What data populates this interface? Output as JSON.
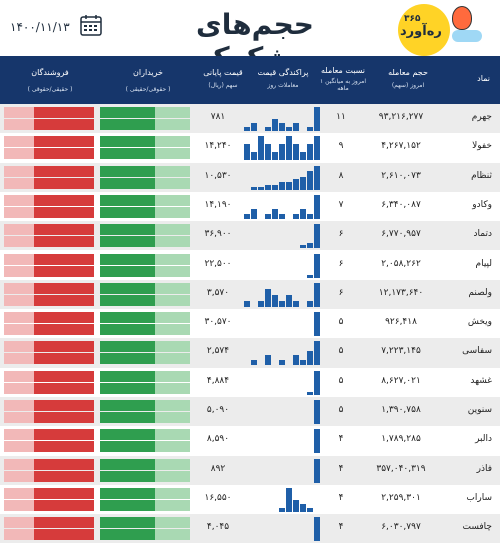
{
  "header": {
    "title": "حجم‌های مشکوک",
    "date": "۱۴۰۰/۱۱/۱۳",
    "logo_number": "۳۶۵",
    "logo_brand": "ره‌آورد",
    "colors": {
      "header_bg": "#16366b",
      "buy": "#2f9e4f",
      "sell": "#d63b3b",
      "spark": "#1f5fa8"
    }
  },
  "columns": {
    "symbol": "نماد",
    "volume": "حجم معامله",
    "volume_sub": "امروز (سهم)",
    "ratio": "نسبت معامله",
    "ratio_sub": "امروز به میانگین ۱ ماهه",
    "spread": "پراکندگی قیمت",
    "spread_sub": "معاملات روز",
    "price": "قیمت پایانی",
    "price_sub": "سهم (ریال)",
    "buyers": "خریداران",
    "buyers_sub": "( حقوقی/حقیقی )",
    "sellers": "فروشندگان",
    "sellers_sub": "( حقیقی/حقوقی )"
  },
  "rows": [
    {
      "symbol": "جهرم",
      "volume": "۹۳,۲۱۶,۲۷۷",
      "ratio": "۱۱",
      "price": "۷۸۱",
      "spark": [
        1,
        2,
        0,
        1,
        3,
        2,
        1,
        2,
        0,
        1,
        6
      ]
    },
    {
      "symbol": "خفولا",
      "volume": "۴,۲۶۷,۱۵۲",
      "ratio": "۹",
      "price": "۱۴,۲۴۰",
      "spark": [
        2,
        1,
        3,
        2,
        1,
        2,
        3,
        2,
        1,
        2,
        3
      ]
    },
    {
      "symbol": "ثنظام",
      "volume": "۲,۶۱۰,۰۷۳",
      "ratio": "۸",
      "price": "۱۰,۵۳۰",
      "spark": [
        0,
        1,
        1,
        2,
        2,
        3,
        3,
        4,
        5,
        7,
        9
      ]
    },
    {
      "symbol": "وکادو",
      "volume": "۶,۳۴۰,۰۸۷",
      "ratio": "۷",
      "price": "۱۴,۱۹۰",
      "spark": [
        1,
        2,
        0,
        1,
        2,
        1,
        0,
        1,
        2,
        1,
        5
      ]
    },
    {
      "symbol": "دتماد",
      "volume": "۶,۷۷۰,۹۵۷",
      "ratio": "۶",
      "price": "۳۶,۹۰۰",
      "spark": [
        0,
        0,
        0,
        0,
        0,
        0,
        0,
        0,
        1,
        2,
        9
      ]
    },
    {
      "symbol": "لپیام",
      "volume": "۲,۰۵۸,۲۶۲",
      "ratio": "۶",
      "price": "۲۲,۵۰۰",
      "spark": [
        0,
        0,
        0,
        0,
        0,
        0,
        0,
        0,
        0,
        1,
        7
      ]
    },
    {
      "symbol": "ولصنم",
      "volume": "۱۲,۱۷۳,۶۴۰",
      "ratio": "۶",
      "price": "۳,۵۷۰",
      "spark": [
        1,
        0,
        1,
        3,
        2,
        1,
        2,
        1,
        0,
        1,
        4
      ]
    },
    {
      "symbol": "ویخش",
      "volume": "۹۲۶,۴۱۸",
      "ratio": "۵",
      "price": "۳۰,۵۷۰",
      "spark": [
        0,
        0,
        0,
        0,
        0,
        0,
        0,
        0,
        0,
        0,
        8
      ]
    },
    {
      "symbol": "سفاسی",
      "volume": "۷,۲۲۳,۱۴۵",
      "ratio": "۵",
      "price": "۲,۵۷۴",
      "spark": [
        0,
        1,
        0,
        2,
        0,
        1,
        0,
        2,
        1,
        3,
        5
      ]
    },
    {
      "symbol": "غشهد",
      "volume": "۸,۶۲۷,۰۲۱",
      "ratio": "۵",
      "price": "۴,۸۸۴",
      "spark": [
        0,
        0,
        0,
        0,
        0,
        0,
        0,
        0,
        0,
        1,
        9
      ]
    },
    {
      "symbol": "سنوین",
      "volume": "۱,۳۹۰,۷۵۸",
      "ratio": "۵",
      "price": "۵,۰۹۰",
      "spark": [
        0,
        0,
        0,
        0,
        0,
        0,
        0,
        0,
        0,
        0,
        6
      ]
    },
    {
      "symbol": "دالبر",
      "volume": "۱,۷۸۹,۲۸۵",
      "ratio": "۴",
      "price": "۸,۵۹۰",
      "spark": [
        0,
        0,
        0,
        0,
        0,
        0,
        0,
        0,
        0,
        0,
        8
      ]
    },
    {
      "symbol": "فاذر",
      "volume": "۳۵۷,۰۴۰,۳۱۹",
      "ratio": "۴",
      "price": "۸۹۲",
      "spark": [
        0,
        0,
        0,
        0,
        0,
        0,
        0,
        0,
        0,
        0,
        7
      ]
    },
    {
      "symbol": "ساراب",
      "volume": "۲,۲۵۹,۳۰۱",
      "ratio": "۴",
      "price": "۱۶,۵۵۰",
      "spark": [
        0,
        0,
        0,
        0,
        0,
        1,
        6,
        3,
        2,
        1,
        0
      ]
    },
    {
      "symbol": "چافست",
      "volume": "۶,۰۳۰,۷۹۷",
      "ratio": "۴",
      "price": "۴,۰۴۵",
      "spark": [
        0,
        0,
        0,
        0,
        0,
        0,
        0,
        0,
        0,
        0,
        8
      ]
    }
  ]
}
